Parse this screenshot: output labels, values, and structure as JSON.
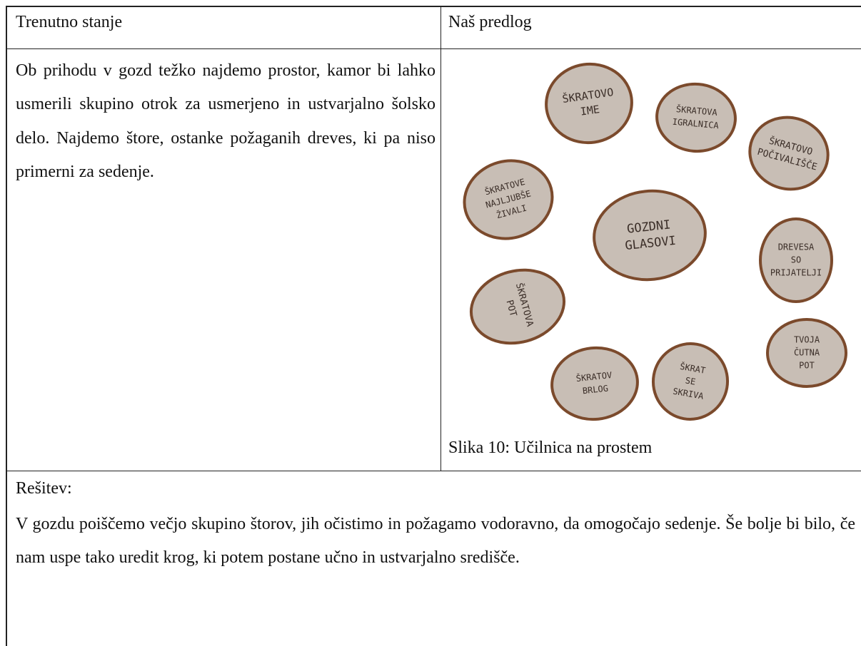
{
  "table": {
    "header": [
      "Trenutno stanje",
      "Naš predlog"
    ],
    "current": "Ob prihodu v gozd težko najdemo prostor, kamor bi lahko usmerili skupino otrok za usmerjeno in ustvarjalno šolsko delo. Najdemo štore, ostanke požaganih dreves, ki pa niso primerni za sedenje.",
    "figure": {
      "caption": "Slika 10: Učilnica na prostem",
      "discs": [
        {
          "lines": [
            "ŠKRATOVO",
            "IME"
          ]
        },
        {
          "lines": [
            "ŠKRATOVA",
            "IGRALNICA"
          ]
        },
        {
          "lines": [
            "ŠKRATOVO",
            "POČIVALIŠČE"
          ]
        },
        {
          "lines": [
            "ŠKRATOVE",
            "NAJLJUBŠE",
            "ŽIVALI"
          ]
        },
        {
          "lines": [
            "GOZDNI",
            "GLASOVI"
          ]
        },
        {
          "lines": [
            "DREVESA",
            "SO",
            "PRIJATELJI"
          ]
        },
        {
          "lines": [
            "ŠKRATOVA",
            "POT"
          ]
        },
        {
          "lines": [
            "TVOJA",
            "ČUTNA",
            "POT"
          ]
        },
        {
          "lines": [
            "ŠKRATOV",
            "BRLOG"
          ]
        },
        {
          "lines": [
            "ŠKRAT",
            "SE",
            "SKRIVA"
          ]
        }
      ]
    },
    "solution": {
      "label": "Rešitev:",
      "text": "V gozdu poiščemo večjo skupino štorov, jih očistimo in požagamo vodoravno, da omogočajo sedenje. Še bolje bi bilo, če nam uspe tako uredit krog, ki potem postane učno in ustvarjalno središče."
    }
  }
}
